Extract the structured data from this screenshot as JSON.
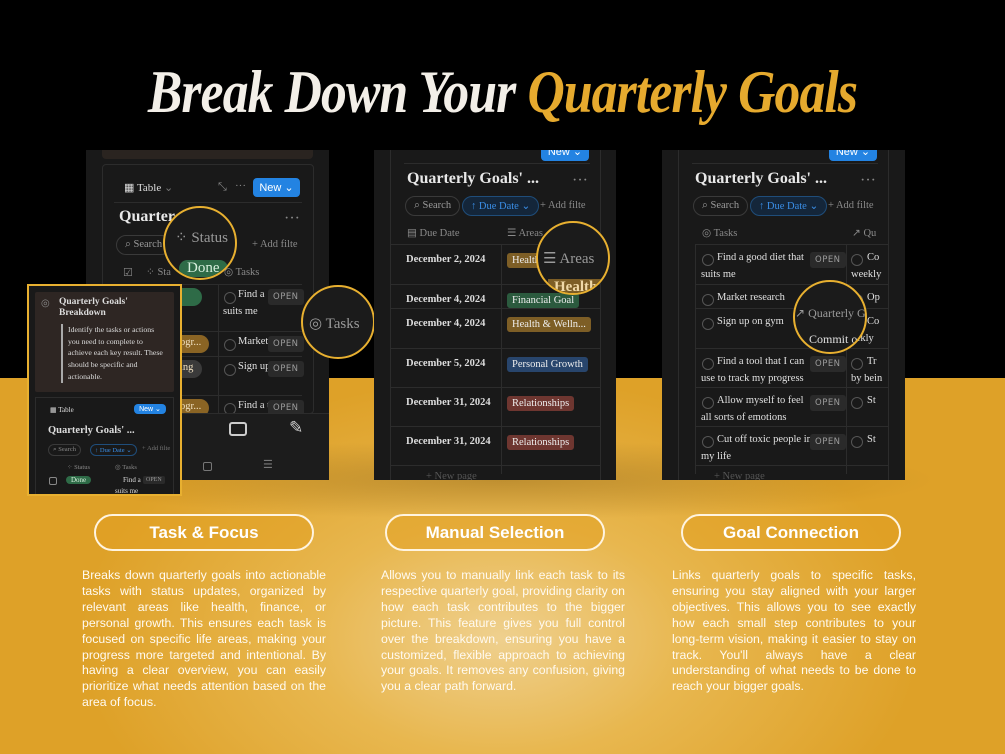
{
  "headline": {
    "main": "Break Down Your",
    "accent": "Quarterly Goals"
  },
  "colors": {
    "gold": "#e6aa2e",
    "notion_blue": "#2383e2",
    "panel_bg": "#191919",
    "health": "#7d5e26",
    "financial": "#2b5a3e",
    "growth": "#28456c",
    "relationships": "#6e3630"
  },
  "common": {
    "view": "Table",
    "new": "New",
    "db_title": "Quarterly Goals' ...",
    "db_title_partial": "Quarter",
    "search": "Search",
    "sort": "Due Date",
    "add_filter": "Add filte",
    "new_page": "New page",
    "open": "OPEN"
  },
  "panel1": {
    "magnifier_status": "Status",
    "magnifier_done": "Done",
    "magnifier_tasks": "Tasks",
    "col_status": "Sta",
    "col_tasks": "Tasks",
    "rows": [
      {
        "status": "",
        "status_color": "#2e6b47",
        "task": [
          "Find a ",
          "suits me"
        ]
      },
      {
        "status": "ogr...",
        "status_color": "#8a6424",
        "task": [
          "Market"
        ]
      },
      {
        "status": "ing",
        "status_color": "#3a3a3a",
        "task": [
          "Sign up"
        ]
      },
      {
        "status": "ogr...",
        "status_color": "#8a6424",
        "task": [
          "Find a t"
        ]
      }
    ],
    "nav_icons": [
      "search-icon",
      "inbox-icon",
      "edit-icon",
      "square-icon",
      "menu-icon"
    ],
    "inset": {
      "callout_title": "Quarterly Goals' Breakdown",
      "callout_text": "Identify the tasks or actions you need to complete to achieve each key result. These should be specific and actionable.",
      "col_status": "Status",
      "col_tasks": "Tasks",
      "row_status": "Done",
      "row_task": [
        "Find a ",
        "suits me"
      ]
    }
  },
  "panel2": {
    "col_date": "Due Date",
    "col_areas": "Areas",
    "magnifier_areas": "Areas",
    "magnifier_health": "Health",
    "rows": [
      {
        "date": "December 2, 2024",
        "area": "Health",
        "color": "#7d5e26"
      },
      {
        "date": "December 4, 2024",
        "area": "Financial Goal",
        "color": "#2b5a3e"
      },
      {
        "date": "December 4, 2024",
        "area": "Health & Welln...",
        "color": "#7d5e26"
      },
      {
        "date": "December 5, 2024",
        "area": "Personal Growth",
        "color": "#28456c"
      },
      {
        "date": "December 31, 2024",
        "area": "Relationships",
        "color": "#6e3630"
      },
      {
        "date": "December 31, 2024",
        "area": "Relationships",
        "color": "#6e3630"
      }
    ]
  },
  "panel3": {
    "col_tasks": "Tasks",
    "col_goal": "Qu",
    "magnifier_goal": "Quarterly G",
    "magnifier_commit": "Commit o",
    "rows": [
      {
        "task": [
          "Find a good diet that",
          "suits me"
        ],
        "open": true,
        "goal": [
          "Co",
          "weekly"
        ]
      },
      {
        "task": [
          "Market research"
        ],
        "open": false,
        "goal": [
          "Op"
        ]
      },
      {
        "task": [
          "Sign up on gym"
        ],
        "open": false,
        "goal": [
          "Co",
          "eekly"
        ]
      },
      {
        "task": [
          "Find a tool that I can",
          "use to track my progress"
        ],
        "open": true,
        "goal": [
          "Tr",
          "by bein"
        ]
      },
      {
        "task": [
          "Allow myself to feel",
          "all sorts of emotions"
        ],
        "open": true,
        "goal": [
          "St"
        ]
      },
      {
        "task": [
          "Cut off toxic people in",
          "my life"
        ],
        "open": true,
        "goal": [
          "St"
        ]
      }
    ]
  },
  "features": [
    {
      "title": "Task & Focus",
      "text": "Breaks down quarterly goals into actionable tasks with status updates, organized by relevant areas like health, finance, or personal growth. This ensures each task is focused on specific life areas, making your progress more targeted and intentional. By having a clear overview, you can easily prioritize what needs attention based on the area of focus."
    },
    {
      "title": "Manual Selection",
      "text": "Allows you to manually link each task to its respective quarterly goal, providing clarity on how each task contributes to the bigger picture. This feature gives you full control over the breakdown, ensuring you have a customized, flexible approach to achieving your goals. It removes any confusion, giving you a clear path forward."
    },
    {
      "title": "Goal Connection",
      "text": "Links quarterly goals to specific tasks, ensuring you stay aligned with your larger objectives. This allows you to see exactly how each small step contributes to your long-term vision, making it easier to stay on track. You'll always have a clear understanding of what needs to be done to reach your bigger goals."
    }
  ]
}
